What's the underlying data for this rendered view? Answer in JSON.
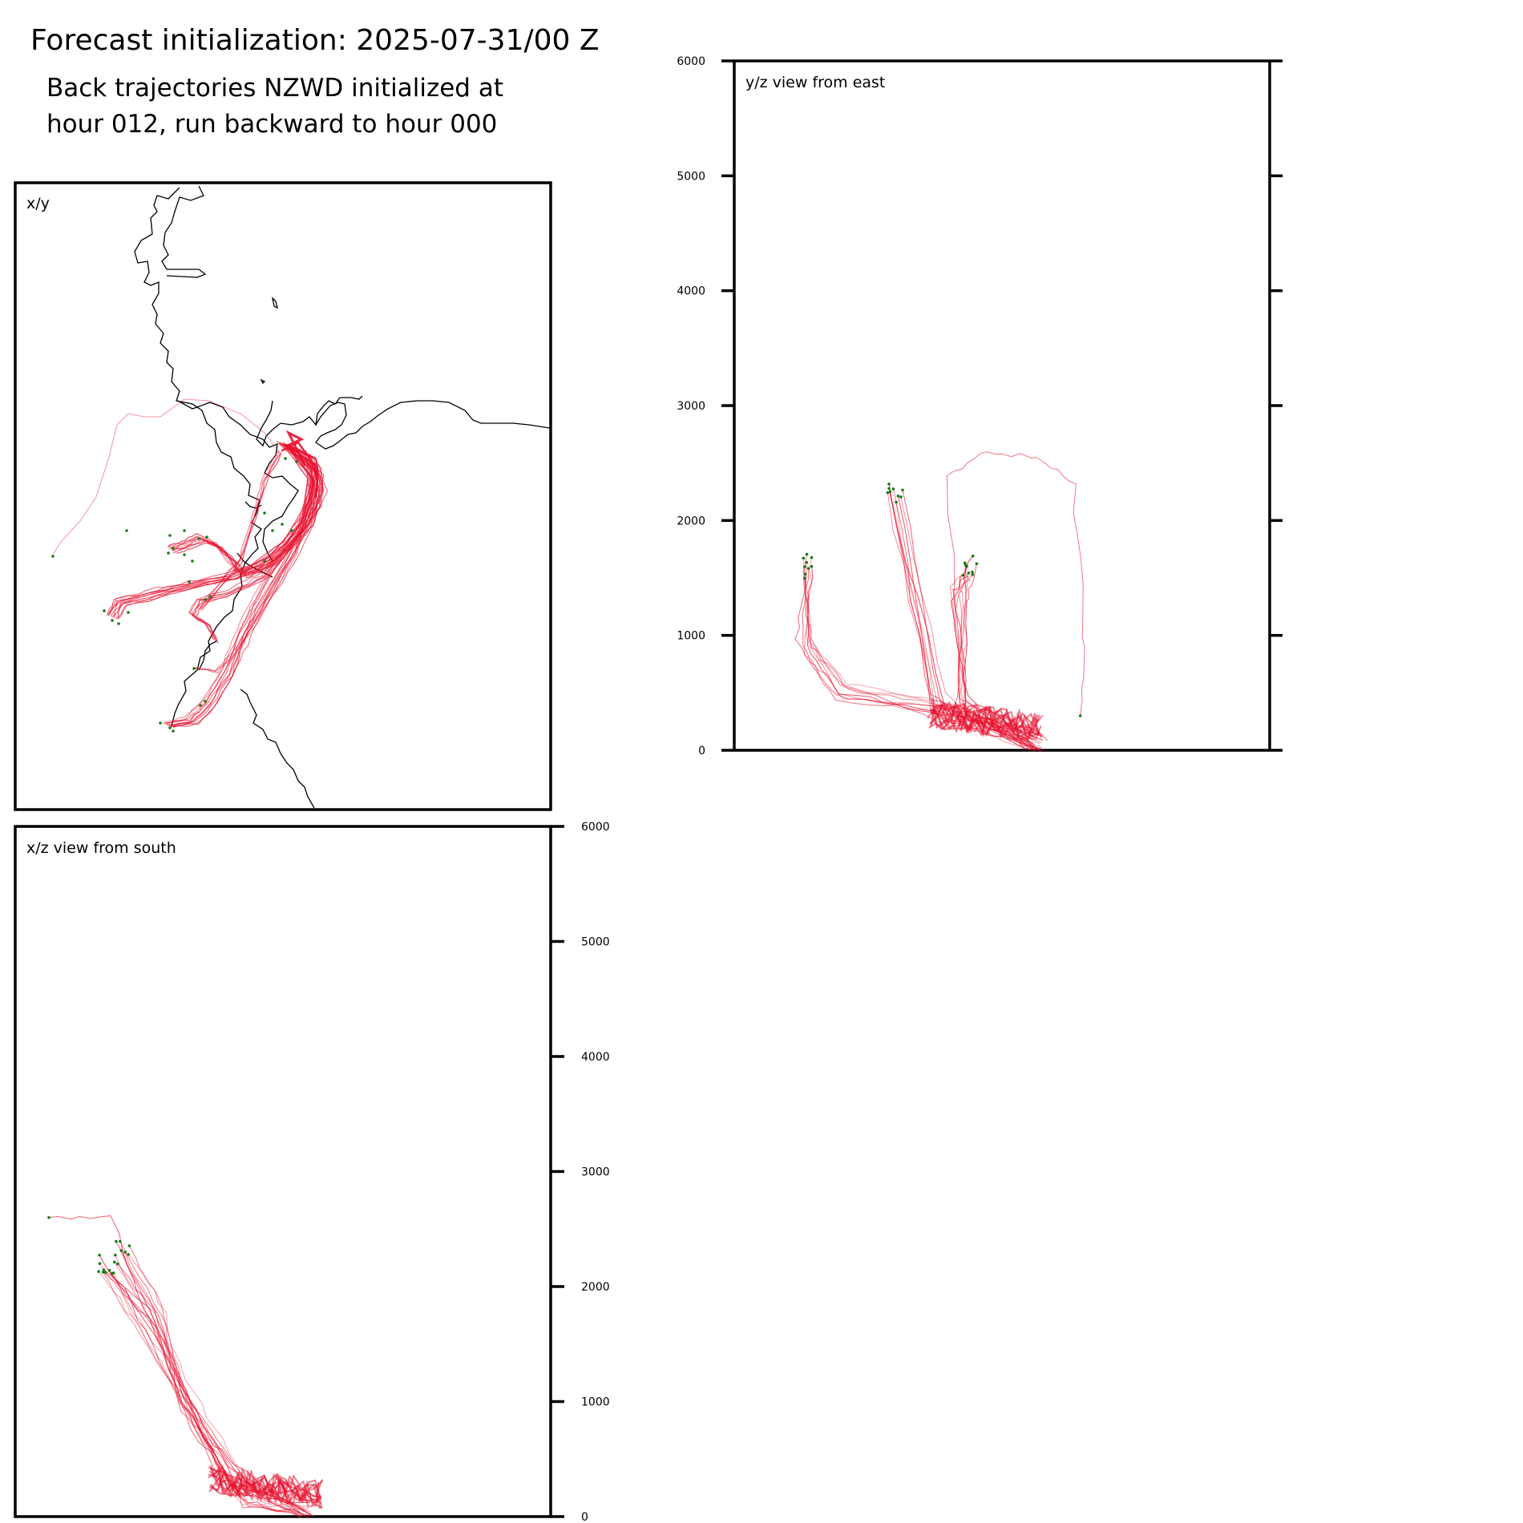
{
  "header": {
    "title": "Forecast initialization: 2025-07-31/00 Z",
    "subtitle_line1": "Back trajectories NZWD initialized at",
    "subtitle_line2": "hour 012, run backward to hour 000"
  },
  "colors": {
    "trajectory": "#e8102e",
    "endpoint_marker": "#1a7a1a",
    "coastline": "#000000",
    "frame": "#000000"
  },
  "chart_data": [
    {
      "type": "line",
      "panel": "xy",
      "title": "x/y",
      "xlabel": "",
      "ylabel": "",
      "grid": false,
      "note_coastline": true,
      "series": [
        {
          "values": [
            [
              350,
              568
            ],
            [
              330,
              602
            ],
            [
              302,
              664
            ],
            [
              260,
              712
            ],
            [
              250,
              726
            ]
          ]
        },
        {
          "values": [
            [
              350,
              568
            ],
            [
              360,
              560
            ],
            [
              392,
              586
            ],
            [
              372,
              680
            ],
            [
              330,
              740
            ],
            [
              280,
              768
            ]
          ]
        },
        {
          "values": [
            [
              350,
              568
            ],
            [
              390,
              580
            ],
            [
              380,
              650
            ],
            [
              335,
              714
            ],
            [
              285,
              740
            ]
          ]
        },
        {
          "values": [
            [
              350,
              568
            ],
            [
              395,
              590
            ],
            [
              375,
              670
            ],
            [
              320,
              740
            ],
            [
              240,
              790
            ],
            [
              150,
              810
            ],
            [
              130,
              762
            ]
          ]
        },
        {
          "values": [
            [
              350,
              568
            ],
            [
              390,
              595
            ],
            [
              370,
              680
            ],
            [
              300,
              760
            ],
            [
              190,
              832
            ],
            [
              130,
              892
            ]
          ]
        }
      ]
    },
    {
      "type": "line",
      "panel": "yz",
      "title": "y/z view from east",
      "ylim": [
        0,
        6000
      ],
      "yticks": [
        "0",
        "1000",
        "2000",
        "3000",
        "4000",
        "5000",
        "6000"
      ],
      "grid": false,
      "series": [
        {
          "values": [
            [
              0.57,
              0
            ],
            [
              0.5,
              200
            ],
            [
              0.38,
              350
            ],
            [
              0.2,
              500
            ],
            [
              0.13,
              900
            ],
            [
              0.14,
              1600
            ]
          ]
        },
        {
          "values": [
            [
              0.56,
              50
            ],
            [
              0.45,
              250
            ],
            [
              0.38,
              400
            ],
            [
              0.3,
              2250
            ]
          ]
        },
        {
          "values": [
            [
              0.57,
              0
            ],
            [
              0.43,
              300
            ],
            [
              0.41,
              2400
            ],
            [
              0.47,
              2600
            ],
            [
              0.58,
              2550
            ],
            [
              0.63,
              2300
            ],
            [
              0.65,
              1000
            ],
            [
              0.66,
              300
            ]
          ]
        },
        {
          "values": [
            [
              0.56,
              20
            ],
            [
              0.42,
              400
            ],
            [
              0.42,
              1350
            ],
            [
              0.44,
              1600
            ]
          ]
        }
      ]
    },
    {
      "type": "line",
      "panel": "xz",
      "title": "x/z view from south",
      "ylim": [
        0,
        6000
      ],
      "yticks": [
        "0",
        "1000",
        "2000",
        "3000",
        "4000",
        "5000",
        "6000"
      ],
      "grid": false,
      "series": [
        {
          "values": [
            [
              0.54,
              0
            ],
            [
              0.42,
              200
            ],
            [
              0.34,
              800
            ],
            [
              0.24,
              1700
            ],
            [
              0.17,
              2200
            ]
          ]
        },
        {
          "values": [
            [
              0.55,
              50
            ],
            [
              0.4,
              350
            ],
            [
              0.32,
              1000
            ],
            [
              0.27,
              1700
            ],
            [
              0.2,
              2300
            ]
          ]
        },
        {
          "values": [
            [
              0.56,
              0
            ],
            [
              0.45,
              300
            ],
            [
              0.35,
              700
            ],
            [
              0.23,
              1800
            ],
            [
              0.19,
              2600
            ],
            [
              0.07,
              2600
            ]
          ]
        }
      ]
    }
  ]
}
